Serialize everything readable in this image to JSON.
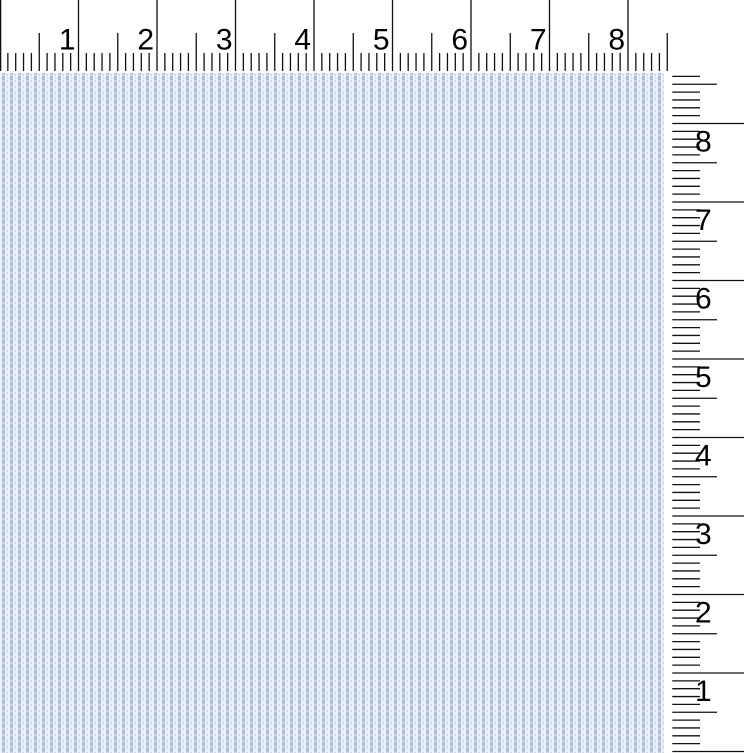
{
  "rulers": {
    "tick_color": "#111111",
    "horizontal": {
      "numbers": [
        "1",
        "2",
        "3",
        "4",
        "5",
        "6",
        "7",
        "8"
      ],
      "subdivisions_per_unit": 10
    },
    "vertical": {
      "numbers": [
        "8",
        "7",
        "6",
        "5",
        "4",
        "3",
        "2",
        "1"
      ],
      "subdivisions_per_unit": 10
    }
  },
  "fabric": {
    "colors": {
      "ground": "#eff3f9",
      "stripe": "#a8bfde",
      "thread_line": "#e2eaf4",
      "dot_on_stripe": "#c7d4e9",
      "dot_on_ground": "#c9d5e9"
    }
  }
}
